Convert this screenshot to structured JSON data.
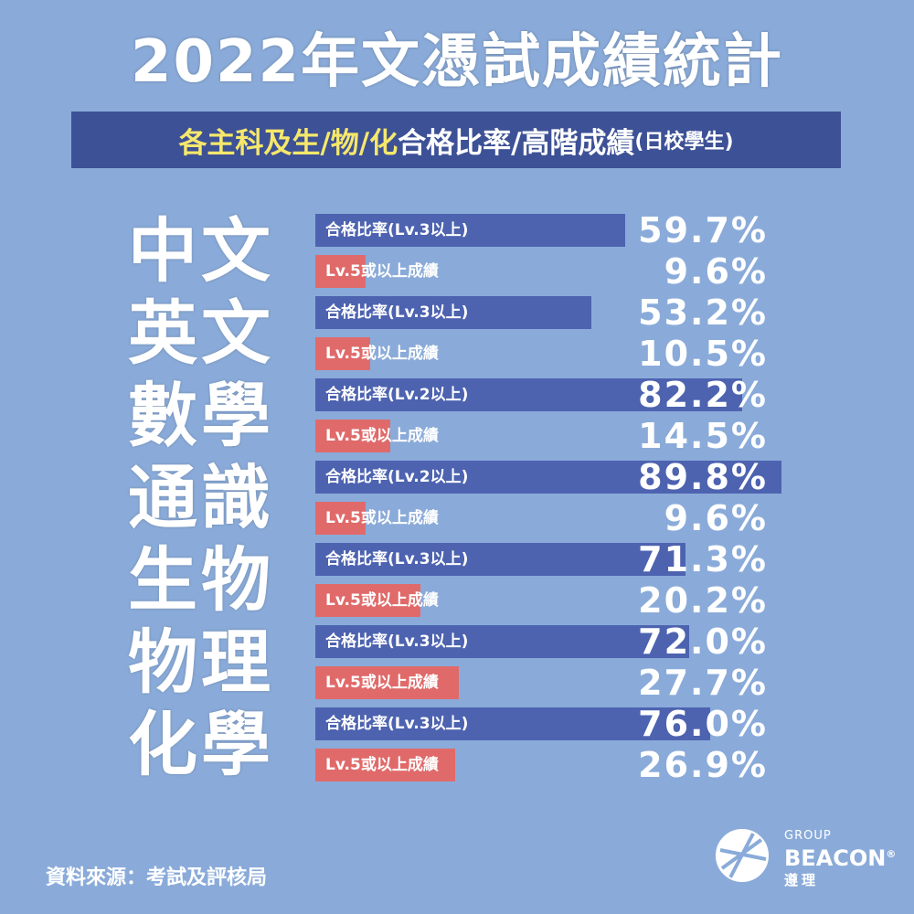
{
  "title": "2022年文憑試成績統計",
  "subtitle": {
    "highlight": "各主科及生/物/化",
    "main": "合格比率/高階成績",
    "small": "(日校學生)"
  },
  "chart_data": {
    "type": "bar",
    "categories": [
      "中文",
      "英文",
      "數學",
      "通識",
      "生物",
      "物理",
      "化學"
    ],
    "series": [
      {
        "labels": [
          "合格比率(Lv.3以上)",
          "合格比率(Lv.3以上)",
          "合格比率(Lv.2以上)",
          "合格比率(Lv.2以上)",
          "合格比率(Lv.3以上)",
          "合格比率(Lv.3以上)",
          "合格比率(Lv.3以上)"
        ],
        "values": [
          59.7,
          53.2,
          82.2,
          89.8,
          71.3,
          72.0,
          76.0
        ],
        "value_labels": [
          "59.7%",
          "53.2%",
          "82.2%",
          "89.8%",
          "71.3%",
          "72.0%",
          "76.0%"
        ],
        "color": "#4d63b0"
      },
      {
        "labels": [
          "Lv.5或以上成績",
          "Lv.5或以上成績",
          "Lv.5或以上成績",
          "Lv.5或以上成績",
          "Lv.5或以上成績",
          "Lv.5或以上成績",
          "Lv.5或以上成績"
        ],
        "values": [
          9.6,
          10.5,
          14.5,
          9.6,
          20.2,
          27.7,
          26.9
        ],
        "value_labels": [
          "9.6%",
          "10.5%",
          "14.5%",
          "9.6%",
          "20.2%",
          "27.7%",
          "26.9%"
        ],
        "color": "#e06a6a"
      }
    ],
    "xlim": [
      0,
      100
    ]
  },
  "source": "資料來源：考試及評核局",
  "logo": {
    "group": "GROUP",
    "brand": "BEACON",
    "reg": "®",
    "chinese": "遵理"
  },
  "colors": {
    "background": "#8aabd9",
    "subtitle_bg": "#3d5196",
    "highlight": "#f6e86b"
  }
}
